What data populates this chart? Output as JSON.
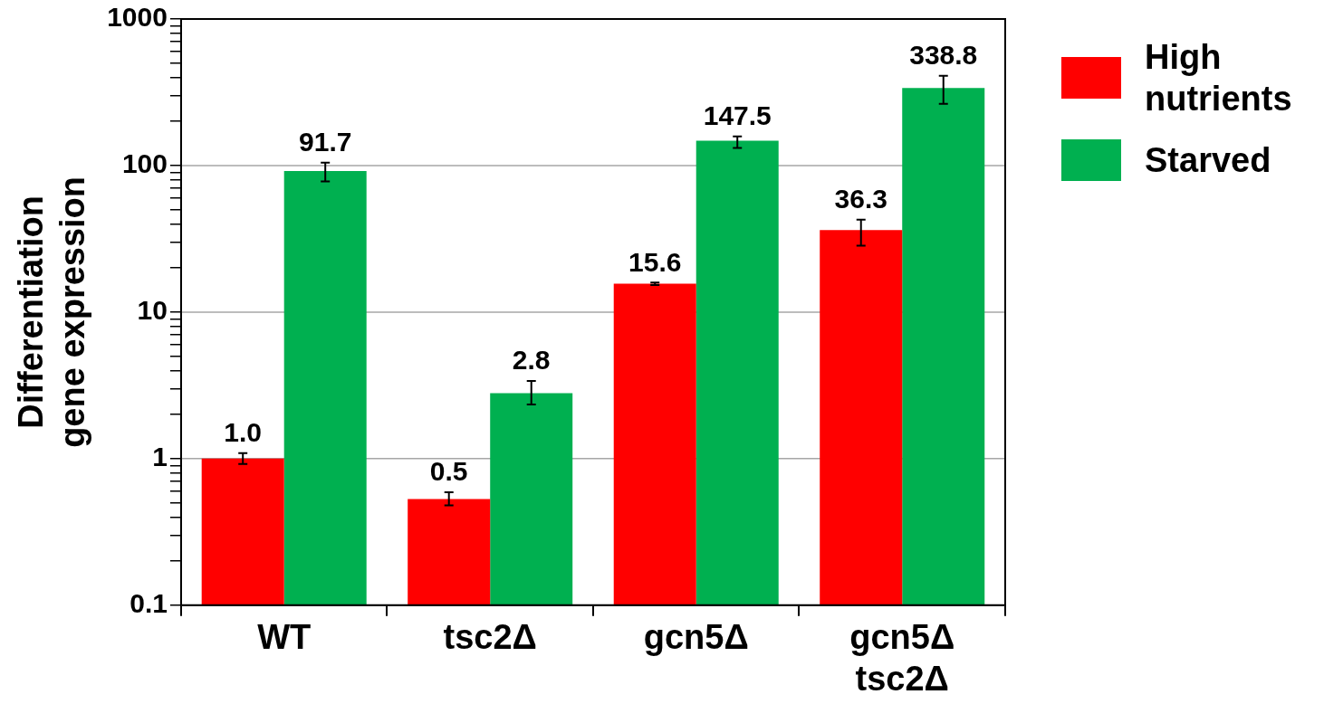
{
  "chart_data": {
    "type": "bar",
    "ylabel": "Differentiation gene expression",
    "categories": [
      "WT",
      "tsc2Δ",
      "gcn5Δ",
      "gcn5Δ tsc2Δ"
    ],
    "series": [
      {
        "name": "High nutrients",
        "color": "#ff0000",
        "values": [
          1.0,
          0.53,
          15.6,
          36.3
        ],
        "value_labels": [
          "1.0",
          "0.5",
          "15.6",
          "36.3"
        ],
        "errors": [
          [
            0.92,
            1.09
          ],
          [
            0.48,
            0.59
          ],
          [
            15.3,
            15.9
          ],
          [
            28.4,
            42.8
          ]
        ]
      },
      {
        "name": "Starved",
        "color": "#00b050",
        "values": [
          91.7,
          2.8,
          147.5,
          338.8
        ],
        "value_labels": [
          "91.7",
          "2.8",
          "147.5",
          "338.8"
        ],
        "errors": [
          [
            77.8,
            104.5
          ],
          [
            2.34,
            3.39
          ],
          [
            132,
            158
          ],
          [
            264,
            410
          ]
        ]
      }
    ],
    "log": "y",
    "ylim": [
      0.1,
      1000
    ],
    "yticks": [
      {
        "value": 0.1,
        "label": "0.1"
      },
      {
        "value": 0.2,
        "label": null
      },
      {
        "value": 0.3,
        "label": null
      },
      {
        "value": 0.4,
        "label": null
      },
      {
        "value": 0.5,
        "label": null
      },
      {
        "value": 0.6,
        "label": null
      },
      {
        "value": 0.7,
        "label": null
      },
      {
        "value": 0.8,
        "label": null
      },
      {
        "value": 0.9,
        "label": null
      },
      {
        "value": 1,
        "label": "1"
      },
      {
        "value": 2,
        "label": null
      },
      {
        "value": 3,
        "label": null
      },
      {
        "value": 4,
        "label": null
      },
      {
        "value": 5,
        "label": null
      },
      {
        "value": 6,
        "label": null
      },
      {
        "value": 7,
        "label": null
      },
      {
        "value": 8,
        "label": null
      },
      {
        "value": 9,
        "label": null
      },
      {
        "value": 10,
        "label": "10"
      },
      {
        "value": 20,
        "label": null
      },
      {
        "value": 30,
        "label": null
      },
      {
        "value": 40,
        "label": null
      },
      {
        "value": 50,
        "label": null
      },
      {
        "value": 60,
        "label": null
      },
      {
        "value": 70,
        "label": null
      },
      {
        "value": 80,
        "label": null
      },
      {
        "value": 90,
        "label": null
      },
      {
        "value": 100,
        "label": "100"
      },
      {
        "value": 200,
        "label": null
      },
      {
        "value": 300,
        "label": null
      },
      {
        "value": 400,
        "label": null
      },
      {
        "value": 500,
        "label": null
      },
      {
        "value": 600,
        "label": null
      },
      {
        "value": 700,
        "label": null
      },
      {
        "value": 800,
        "label": null
      },
      {
        "value": 900,
        "label": null
      },
      {
        "value": 1000,
        "label": "1000"
      }
    ],
    "grid": "y",
    "legend": "right"
  }
}
